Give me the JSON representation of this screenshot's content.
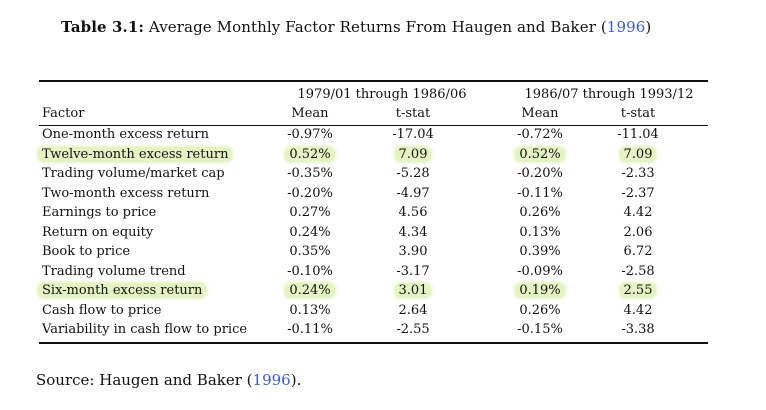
{
  "caption": {
    "label": "Table 3.1:",
    "text": "Average Monthly Factor Returns From Haugen and Baker (",
    "year": "1996",
    "close": ")"
  },
  "periods": [
    "1979/01 through 1986/06",
    "1986/07 through 1993/12"
  ],
  "columns": {
    "factor": "Factor",
    "mean1": "Mean",
    "tstat1": "t-stat",
    "mean2": "Mean",
    "tstat2": "t-stat"
  },
  "rows": [
    {
      "factor": "One-month excess return",
      "mean1": "-0.97%",
      "tstat1": "-17.04",
      "mean2": "-0.72%",
      "tstat2": "-11.04",
      "highlighted": false
    },
    {
      "factor": "Twelve-month excess return",
      "mean1": "0.52%",
      "tstat1": "7.09",
      "mean2": "0.52%",
      "tstat2": "7.09",
      "highlighted": true
    },
    {
      "factor": "Trading volume/market cap",
      "mean1": "-0.35%",
      "tstat1": "-5.28",
      "mean2": "-0.20%",
      "tstat2": "-2.33",
      "highlighted": false
    },
    {
      "factor": "Two-month excess return",
      "mean1": "-0.20%",
      "tstat1": "-4.97",
      "mean2": "-0.11%",
      "tstat2": "-2.37",
      "highlighted": false
    },
    {
      "factor": "Earnings to price",
      "mean1": "0.27%",
      "tstat1": "4.56",
      "mean2": "0.26%",
      "tstat2": "4.42",
      "highlighted": false
    },
    {
      "factor": "Return on equity",
      "mean1": "0.24%",
      "tstat1": "4.34",
      "mean2": "0.13%",
      "tstat2": "2.06",
      "highlighted": false
    },
    {
      "factor": "Book to price",
      "mean1": "0.35%",
      "tstat1": "3.90",
      "mean2": "0.39%",
      "tstat2": "6.72",
      "highlighted": false
    },
    {
      "factor": "Trading volume trend",
      "mean1": "-0.10%",
      "tstat1": "-3.17",
      "mean2": "-0.09%",
      "tstat2": "-2.58",
      "highlighted": false
    },
    {
      "factor": "Six-month excess return",
      "mean1": "0.24%",
      "tstat1": "3.01",
      "mean2": "0.19%",
      "tstat2": "2.55",
      "highlighted": true
    },
    {
      "factor": "Cash flow to price",
      "mean1": "0.13%",
      "tstat1": "2.64",
      "mean2": "0.26%",
      "tstat2": "4.42",
      "highlighted": false
    },
    {
      "factor": "Variability in cash flow to price",
      "mean1": "-0.11%",
      "tstat1": "-2.55",
      "mean2": "-0.15%",
      "tstat2": "-3.38",
      "highlighted": false
    }
  ],
  "source": {
    "text": "Source: Haugen and Baker (",
    "year": "1996",
    "close": ")."
  },
  "colors": {
    "highlight": "#e4f3c2",
    "citation": "#3b5bd6"
  }
}
